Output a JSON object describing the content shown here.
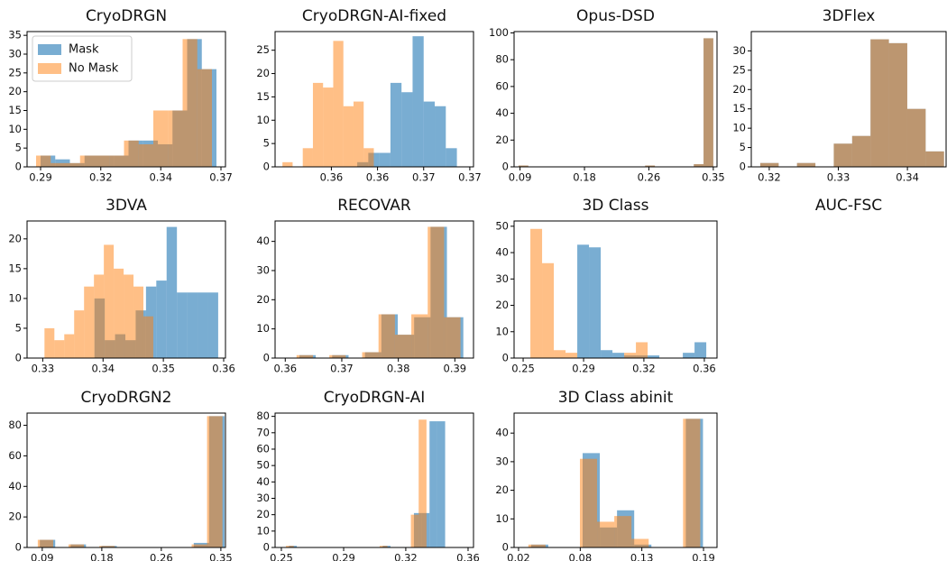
{
  "chart_data": [
    {
      "type": "histogram",
      "title": "CryoDRGN",
      "legend": "upper left",
      "xlim": [
        0.284,
        0.372
      ],
      "ylim": [
        0,
        36
      ],
      "xticks": [
        {
          "value": 0.29,
          "label": "0.29"
        },
        {
          "value": 0.3167,
          "label": "0.32"
        },
        {
          "value": 0.3433,
          "label": "0.34"
        },
        {
          "value": 0.37,
          "label": "0.37"
        }
      ],
      "yticks": [
        0,
        5,
        10,
        15,
        20,
        25,
        30,
        35
      ],
      "series": [
        {
          "name": "Mask",
          "color": "#1f77b4",
          "alpha": 0.6,
          "bins": [
            0.29,
            0.2965,
            0.303,
            0.3095,
            0.316,
            0.3225,
            0.329,
            0.3355,
            0.342,
            0.3485,
            0.355,
            0.3615,
            0.368
          ],
          "values": [
            3,
            2,
            1,
            3,
            3,
            3,
            7,
            7,
            6,
            15,
            34,
            26
          ]
        },
        {
          "name": "No Mask",
          "color": "#ff7f0e",
          "alpha": 0.5,
          "bins": [
            0.288,
            0.2945,
            0.301,
            0.3075,
            0.314,
            0.3205,
            0.327,
            0.3335,
            0.34,
            0.3465,
            0.353,
            0.3595,
            0.366
          ],
          "values": [
            3,
            1,
            1,
            3,
            3,
            3,
            7,
            6,
            15,
            15,
            34,
            26
          ]
        }
      ]
    },
    {
      "type": "histogram",
      "title": "CryoDRGN-AI-fixed",
      "xlim": [
        0.3519,
        0.3734
      ],
      "ylim": [
        0,
        29
      ],
      "xticks": [
        {
          "value": 0.358,
          "label": "0.36"
        },
        {
          "value": 0.363,
          "label": "0.36"
        },
        {
          "value": 0.368,
          "label": "0.37"
        },
        {
          "value": 0.373,
          "label": "0.37"
        }
      ],
      "yticks": [
        0,
        5,
        10,
        15,
        20,
        25
      ],
      "series": [
        {
          "color": "#1f77b4",
          "alpha": 0.6,
          "bins": [
            0.3608,
            0.362,
            0.3632,
            0.3644,
            0.3656,
            0.3668,
            0.368,
            0.3692,
            0.3704,
            0.3716
          ],
          "values": [
            1,
            3,
            3,
            18,
            16,
            28,
            14,
            13,
            4
          ]
        },
        {
          "color": "#ff7f0e",
          "alpha": 0.5,
          "bins": [
            0.3527,
            0.3538,
            0.3549,
            0.356,
            0.3571,
            0.3582,
            0.3593,
            0.3604,
            0.3615,
            0.3626
          ],
          "values": [
            1,
            0,
            4,
            18,
            17,
            27,
            13,
            14,
            4
          ]
        }
      ]
    },
    {
      "type": "histogram",
      "title": "Opus-DSD",
      "xlim": [
        0.082,
        0.355
      ],
      "ylim": [
        0,
        101
      ],
      "xticks": [
        {
          "value": 0.09,
          "label": "0.09"
        },
        {
          "value": 0.1767,
          "label": "0.18"
        },
        {
          "value": 0.2633,
          "label": "0.26"
        },
        {
          "value": 0.35,
          "label": "0.35"
        }
      ],
      "yticks": [
        0,
        20,
        40,
        60,
        80,
        100
      ],
      "series": [
        {
          "color": "#1f77b4",
          "alpha": 0.6,
          "bins": [
            0.088,
            0.1011,
            0.1142,
            0.1273,
            0.1404,
            0.1535,
            0.1666,
            0.1797,
            0.1928,
            0.2059,
            0.219,
            0.2321,
            0.2452,
            0.2583,
            0.2714,
            0.2845,
            0.2976,
            0.3107,
            0.3238,
            0.3369,
            0.35
          ],
          "values": [
            1,
            0,
            0,
            0,
            0,
            0,
            0,
            0,
            0,
            0,
            0,
            0,
            0,
            1,
            0,
            0,
            0,
            0,
            2,
            96
          ]
        },
        {
          "color": "#ff7f0e",
          "alpha": 0.5,
          "bins": [
            0.088,
            0.1011,
            0.1142,
            0.1273,
            0.1404,
            0.1535,
            0.1666,
            0.1797,
            0.1928,
            0.2059,
            0.219,
            0.2321,
            0.2452,
            0.2583,
            0.2714,
            0.2845,
            0.2976,
            0.3107,
            0.3238,
            0.3369,
            0.35
          ],
          "values": [
            1,
            0,
            0,
            0,
            0,
            0,
            0,
            0,
            0,
            0,
            0,
            0,
            0,
            1,
            0,
            0,
            0,
            0,
            2,
            96
          ]
        }
      ]
    },
    {
      "type": "histogram",
      "title": "3DFlex",
      "xlim": [
        0.3174,
        0.3456
      ],
      "ylim": [
        0,
        35
      ],
      "xticks": [
        0.32,
        0.33,
        0.34
      ],
      "yticks": [
        0,
        5,
        10,
        15,
        20,
        25,
        30
      ],
      "series": [
        {
          "color": "#1f77b4",
          "alpha": 0.6,
          "bins": [
            0.3187,
            0.32136,
            0.32402,
            0.32668,
            0.32934,
            0.332,
            0.33466,
            0.33732,
            0.33998,
            0.34264,
            0.3453
          ],
          "values": [
            1,
            0,
            1,
            0,
            6,
            8,
            33,
            32,
            15,
            4
          ]
        },
        {
          "color": "#ff7f0e",
          "alpha": 0.5,
          "bins": [
            0.3187,
            0.32136,
            0.32402,
            0.32668,
            0.32934,
            0.332,
            0.33466,
            0.33732,
            0.33998,
            0.34264,
            0.3453
          ],
          "values": [
            1,
            0,
            1,
            0,
            6,
            8,
            33,
            32,
            15,
            4
          ]
        }
      ]
    },
    {
      "type": "histogram",
      "title": "3DVA",
      "xlim": [
        0.3274,
        0.3603
      ],
      "ylim": [
        0,
        23
      ],
      "xticks": [
        0.33,
        0.34,
        0.35,
        0.36
      ],
      "yticks": [
        0,
        5,
        10,
        15,
        20
      ],
      "series": [
        {
          "color": "#1f77b4",
          "alpha": 0.6,
          "bins": [
            0.33857,
            0.34028,
            0.34199,
            0.3437,
            0.34541,
            0.34712,
            0.34883,
            0.35054,
            0.35225,
            0.35396,
            0.35567,
            0.35738,
            0.35909
          ],
          "values": [
            10,
            3,
            4,
            3,
            8,
            12,
            13,
            22,
            11,
            11,
            11,
            11
          ]
        },
        {
          "color": "#ff7f0e",
          "alpha": 0.5,
          "bins": [
            0.33029,
            0.33193,
            0.33357,
            0.33521,
            0.33685,
            0.33849,
            0.34013,
            0.34177,
            0.34341,
            0.34505,
            0.34669,
            0.34833
          ],
          "values": [
            5,
            3,
            4,
            8,
            12,
            14,
            19,
            15,
            14,
            12,
            7
          ]
        }
      ]
    },
    {
      "type": "histogram",
      "title": "RECOVAR",
      "xlim": [
        0.3582,
        0.3933
      ],
      "ylim": [
        0,
        47
      ],
      "xticks": [
        0.36,
        0.37,
        0.38,
        0.39
      ],
      "yticks": [
        0,
        10,
        20,
        30,
        40
      ],
      "series": [
        {
          "color": "#1f77b4",
          "alpha": 0.6,
          "bins": [
            0.3625,
            0.3654,
            0.3683,
            0.3712,
            0.3741,
            0.377,
            0.3799,
            0.3828,
            0.3857,
            0.3886,
            0.3915
          ],
          "values": [
            1,
            0,
            1,
            0,
            2,
            15,
            8,
            14,
            45,
            14
          ]
        },
        {
          "color": "#ff7f0e",
          "alpha": 0.5,
          "bins": [
            0.362,
            0.3649,
            0.3678,
            0.3707,
            0.3736,
            0.3765,
            0.3794,
            0.3823,
            0.3852,
            0.3881,
            0.391
          ],
          "values": [
            1,
            0,
            1,
            0,
            2,
            15,
            8,
            15,
            45,
            14
          ]
        }
      ]
    },
    {
      "type": "histogram",
      "title": "3D Class",
      "xlim": [
        0.2445,
        0.3677
      ],
      "ylim": [
        0,
        52
      ],
      "xticks": [
        {
          "value": 0.25,
          "label": "0.25"
        },
        {
          "value": 0.2867,
          "label": "0.29"
        },
        {
          "value": 0.3233,
          "label": "0.32"
        },
        {
          "value": 0.36,
          "label": "0.36"
        }
      ],
      "yticks": [
        0,
        10,
        20,
        30,
        40,
        50
      ],
      "series": [
        {
          "color": "#1f77b4",
          "alpha": 0.6,
          "bins": [
            0.25438,
            0.2615,
            0.26862,
            0.27574,
            0.28286,
            0.28998,
            0.2971,
            0.30422,
            0.31134,
            0.31846,
            0.32558,
            0.3327,
            0.33982,
            0.34694,
            0.35406,
            0.36118
          ],
          "values": [
            0,
            0,
            0,
            0,
            43,
            42,
            3,
            2,
            1,
            1,
            1,
            0,
            0,
            2,
            6
          ]
        },
        {
          "color": "#ff7f0e",
          "alpha": 0.5,
          "bins": [
            0.25438,
            0.2615,
            0.26862,
            0.27574,
            0.28286,
            0.28998,
            0.2971,
            0.30422,
            0.31134,
            0.31846,
            0.32558
          ],
          "values": [
            49,
            36,
            3,
            2,
            0,
            0,
            0,
            0,
            2,
            6
          ]
        }
      ]
    },
    {
      "type": "histogram",
      "title": "AUC-FSC"
    },
    {
      "type": "histogram",
      "title": "CryoDRGN2",
      "xlim": [
        0.0679,
        0.3567
      ],
      "ylim": [
        0,
        88
      ],
      "xticks": [
        {
          "value": 0.09,
          "label": "0.09"
        },
        {
          "value": 0.1767,
          "label": "0.18"
        },
        {
          "value": 0.2633,
          "label": "0.26"
        },
        {
          "value": 0.35,
          "label": "0.35"
        }
      ],
      "yticks": [
        0,
        20,
        40,
        60,
        80
      ],
      "series": [
        {
          "color": "#1f77b4",
          "alpha": 0.6,
          "bins": [
            0.0865,
            0.1089,
            0.1313,
            0.1537,
            0.1761,
            0.1985,
            0.2209,
            0.2433,
            0.2657,
            0.2881,
            0.3105,
            0.3329,
            0.3553
          ],
          "values": [
            5,
            0,
            2,
            0,
            1,
            0,
            0,
            0,
            0,
            0,
            3,
            86
          ]
        },
        {
          "color": "#ff7f0e",
          "alpha": 0.5,
          "bins": [
            0.0835,
            0.1059,
            0.1283,
            0.1507,
            0.1731,
            0.1955,
            0.2179,
            0.2403,
            0.2627,
            0.2851,
            0.3075,
            0.3299,
            0.3523
          ],
          "values": [
            5,
            0,
            2,
            0,
            1,
            0,
            0,
            0,
            0,
            0,
            2,
            86
          ]
        }
      ]
    },
    {
      "type": "histogram",
      "title": "CryoDRGN-AI",
      "xlim": [
        0.2463,
        0.3632
      ],
      "ylim": [
        0,
        82
      ],
      "xticks": [
        {
          "value": 0.25,
          "label": "0.25"
        },
        {
          "value": 0.2867,
          "label": "0.29"
        },
        {
          "value": 0.3233,
          "label": "0.32"
        },
        {
          "value": 0.36,
          "label": "0.36"
        }
      ],
      "yticks": [
        0,
        10,
        20,
        30,
        40,
        50,
        60,
        70,
        80
      ],
      "series": [
        {
          "color": "#1f77b4",
          "alpha": 0.6,
          "bins": [
            0.2545,
            0.2591,
            0.2637,
            0.2683,
            0.2729,
            0.2775,
            0.2821,
            0.2867,
            0.2913,
            0.2959,
            0.3005,
            0.3051,
            0.3097,
            0.3143,
            0.3189,
            0.3235,
            0.3281,
            0.3327,
            0.3373,
            0.3419,
            0.3465
          ],
          "values": [
            1,
            0,
            0,
            0,
            0,
            0,
            0,
            0,
            0,
            0,
            0,
            0,
            1,
            0,
            0,
            0,
            21,
            21,
            77,
            77
          ]
        },
        {
          "color": "#ff7f0e",
          "alpha": 0.5,
          "bins": [
            0.2527,
            0.2573,
            0.2619,
            0.2665,
            0.2711,
            0.2757,
            0.2803,
            0.2849,
            0.2895,
            0.2941,
            0.2987,
            0.3033,
            0.3079,
            0.3125,
            0.3171,
            0.3217,
            0.3263,
            0.3309,
            0.3355
          ],
          "values": [
            1,
            0,
            0,
            0,
            0,
            0,
            0,
            0,
            0,
            0,
            0,
            0,
            1,
            0,
            0,
            0,
            20,
            78
          ]
        }
      ]
    },
    {
      "type": "histogram",
      "title": "3D Class abinit",
      "xlim": [
        0.0159,
        0.2024
      ],
      "ylim": [
        0,
        47
      ],
      "xticks": [
        {
          "value": 0.02,
          "label": "0.02"
        },
        {
          "value": 0.0767,
          "label": "0.08"
        },
        {
          "value": 0.1333,
          "label": "0.13"
        },
        {
          "value": 0.19,
          "label": "0.19"
        }
      ],
      "yticks": [
        0,
        10,
        20,
        30,
        40
      ],
      "series": [
        {
          "color": "#1f77b4",
          "alpha": 0.6,
          "bins": [
            0.0315,
            0.0473,
            0.0631,
            0.0789,
            0.0947,
            0.1105,
            0.1263,
            0.1421,
            0.1579,
            0.1737,
            0.1895
          ],
          "values": [
            1,
            0,
            0,
            33,
            7,
            13,
            1,
            0,
            0,
            45
          ]
        },
        {
          "color": "#ff7f0e",
          "alpha": 0.5,
          "bins": [
            0.029,
            0.0448,
            0.0606,
            0.0764,
            0.0922,
            0.108,
            0.1238,
            0.1396,
            0.1554,
            0.1712,
            0.187
          ],
          "values": [
            1,
            0,
            0,
            31,
            9,
            11,
            3,
            0,
            0,
            45
          ]
        }
      ]
    }
  ]
}
